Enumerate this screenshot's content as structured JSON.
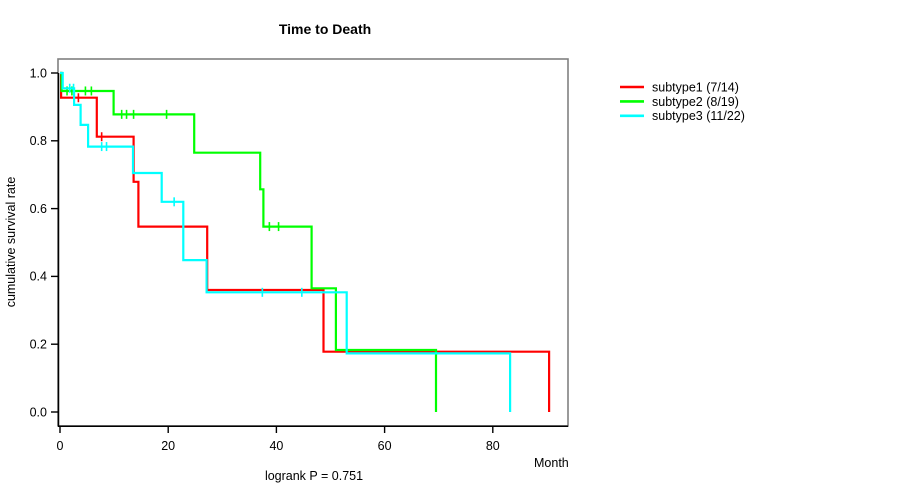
{
  "chart_data": {
    "type": "line",
    "variant": "kaplan-meier-step",
    "title": "Time to Death",
    "xlabel": "Month",
    "ylabel": "cumulative survival rate",
    "footnote": "logrank P = 0.751",
    "xlim": [
      0,
      94
    ],
    "ylim": [
      0,
      1
    ],
    "grid": false,
    "legend_position": "right-outside",
    "x_ticks": [
      0,
      20,
      40,
      60,
      80
    ],
    "y_ticks": [
      0.0,
      0.2,
      0.4,
      0.6,
      0.8,
      1.0
    ],
    "y_tick_labels": [
      "0.0",
      "0.2",
      "0.4",
      "0.6",
      "0.8",
      "1.0"
    ],
    "box_color": "#808080",
    "axis_color": "#000000",
    "series": [
      {
        "name": "subtype1 (7/14)",
        "color": "#ff0000",
        "steps": [
          [
            0,
            1.0
          ],
          [
            0.2,
            0.927
          ],
          [
            6.8,
            0.812
          ],
          [
            13.6,
            0.679
          ],
          [
            14.5,
            0.547
          ],
          [
            27.2,
            0.36
          ],
          [
            48.7,
            0.178
          ],
          [
            90.4,
            0.0
          ]
        ],
        "censor_marks": [
          [
            3.4,
            0.927
          ],
          [
            7.7,
            0.812
          ]
        ]
      },
      {
        "name": "subtype2 (8/19)",
        "color": "#00ff00",
        "steps": [
          [
            0,
            1.0
          ],
          [
            0.3,
            0.947
          ],
          [
            9.9,
            0.878
          ],
          [
            24.8,
            0.765
          ],
          [
            37.0,
            0.657
          ],
          [
            37.6,
            0.547
          ],
          [
            46.5,
            0.365
          ],
          [
            51.0,
            0.183
          ],
          [
            69.5,
            0.0
          ]
        ],
        "censor_marks": [
          [
            1.3,
            0.947
          ],
          [
            2.2,
            0.947
          ],
          [
            4.7,
            0.947
          ],
          [
            5.8,
            0.947
          ],
          [
            11.4,
            0.878
          ],
          [
            12.3,
            0.878
          ],
          [
            13.6,
            0.878
          ],
          [
            19.7,
            0.878
          ],
          [
            38.7,
            0.547
          ],
          [
            40.4,
            0.547
          ]
        ]
      },
      {
        "name": "subtype3 (11/22)",
        "color": "#00ffff",
        "steps": [
          [
            0,
            1.0
          ],
          [
            0.5,
            0.955
          ],
          [
            2.6,
            0.906
          ],
          [
            3.8,
            0.847
          ],
          [
            5.2,
            0.783
          ],
          [
            13.5,
            0.705
          ],
          [
            18.8,
            0.62
          ],
          [
            22.8,
            0.448
          ],
          [
            27.1,
            0.353
          ],
          [
            53.0,
            0.173
          ],
          [
            83.2,
            0.0
          ]
        ],
        "censor_marks": [
          [
            1.8,
            0.955
          ],
          [
            2.5,
            0.955
          ],
          [
            7.7,
            0.783
          ],
          [
            8.6,
            0.783
          ],
          [
            21.1,
            0.62
          ],
          [
            37.4,
            0.353
          ],
          [
            44.7,
            0.353
          ]
        ]
      }
    ]
  }
}
